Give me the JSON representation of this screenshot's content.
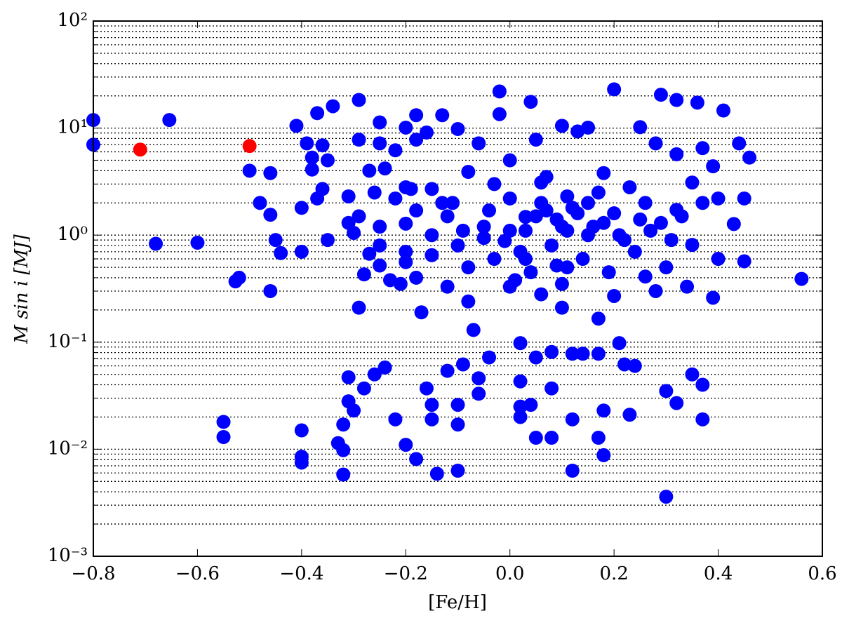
{
  "chart_data": {
    "type": "scatter",
    "xlabel": "[Fe/H]",
    "ylabel": "M sin i [MJ]",
    "xlim": [
      -0.8,
      0.6
    ],
    "ylim": [
      0.001,
      100
    ],
    "yscale": "log",
    "grid": true,
    "xticks": [
      {
        "value": -0.8,
        "label": "−0.8"
      },
      {
        "value": -0.6,
        "label": "−0.6"
      },
      {
        "value": -0.4,
        "label": "−0.4"
      },
      {
        "value": -0.2,
        "label": "−0.2"
      },
      {
        "value": 0,
        "label": "0.0"
      },
      0.2,
      0.4,
      0.6
    ],
    "yticks": [
      {
        "value": 0.001,
        "label": "10⁻³"
      },
      {
        "value": 0.01,
        "label": "10⁻²"
      },
      {
        "value": 0.1,
        "label": "10⁻¹"
      },
      {
        "value": 1,
        "label": "10⁰"
      },
      {
        "value": 10,
        "label": "10¹"
      },
      {
        "value": 100,
        "label": "10²"
      }
    ],
    "yminorticks": [
      0.002,
      0.003,
      0.004,
      0.005,
      0.006,
      0.007,
      0.008,
      0.009,
      0.02,
      0.03,
      0.04,
      0.05,
      0.06,
      0.07,
      0.08,
      0.09,
      0.2,
      0.3,
      0.4,
      0.5,
      0.6,
      0.7,
      0.8,
      0.9,
      2,
      3,
      4,
      5,
      6,
      7,
      8,
      9,
      20,
      30,
      40,
      50,
      60,
      70,
      80,
      90
    ],
    "series": [
      {
        "color": "#0000ff",
        "x": [
          -0.8,
          -0.8,
          -0.654,
          -0.68,
          -0.6,
          -0.55,
          -0.55,
          -0.527,
          -0.52,
          -0.5,
          -0.46,
          -0.46,
          -0.48,
          -0.46,
          -0.45,
          -0.44,
          -0.41,
          -0.4,
          -0.4,
          -0.4,
          -0.4,
          -0.4,
          -0.39,
          -0.38,
          -0.38,
          -0.37,
          -0.37,
          -0.36,
          -0.36,
          -0.35,
          -0.35,
          -0.34,
          -0.33,
          -0.32,
          -0.32,
          -0.32,
          -0.31,
          -0.31,
          -0.31,
          -0.31,
          -0.3,
          -0.3,
          -0.29,
          -0.29,
          -0.29,
          -0.29,
          -0.28,
          -0.28,
          -0.27,
          -0.27,
          -0.26,
          -0.26,
          -0.25,
          -0.25,
          -0.25,
          -0.25,
          -0.24,
          -0.24,
          -0.23,
          -0.22,
          -0.22,
          -0.21,
          -0.2,
          -0.2,
          -0.2,
          -0.2,
          -0.2,
          -0.19,
          -0.18,
          -0.18,
          -0.18,
          -0.18,
          -0.17,
          -0.16,
          -0.16,
          -0.15,
          -0.15,
          -0.15,
          -0.15,
          -0.14,
          -0.13,
          -0.13,
          -0.12,
          -0.12,
          -0.11,
          -0.1,
          -0.1,
          -0.1,
          -0.1,
          -0.09,
          -0.09,
          -0.08,
          -0.08,
          -0.07,
          -0.06,
          -0.06,
          -0.06,
          -0.05,
          -0.04,
          -0.04,
          -0.03,
          -0.02,
          -0.02,
          -0.01,
          0,
          0,
          0,
          0.01,
          0.02,
          0.02,
          0.02,
          0.02,
          0.03,
          0.03,
          0.04,
          0.04,
          0.05,
          0.05,
          0.05,
          0.06,
          0.06,
          0.07,
          0.08,
          0.08,
          0.08,
          0.09,
          0.1,
          0.1,
          0.11,
          0.11,
          0.12,
          0.12,
          0.12,
          0.13,
          0.14,
          0.15,
          0.15,
          0.17,
          0.17,
          0.17,
          0.18,
          0.18,
          0.2,
          0.21,
          0.22,
          0.23,
          0.24,
          0.25,
          0.26,
          0.28,
          0.29,
          0.3,
          0.3,
          0.32,
          0.32,
          0.32,
          0.34,
          0.35,
          0.36,
          0.37,
          0.37,
          0.37,
          0.39,
          0.39,
          0.41,
          0.4,
          0.43,
          0.44,
          0.45,
          0.46,
          0.45,
          0.56,
          0.35,
          0.37,
          0.4,
          0.35,
          0.32,
          0.05,
          0.1,
          0.12,
          0.15,
          0.18,
          0.2,
          0.22,
          0.25,
          0.08,
          0.03,
          0,
          0.02,
          0.14,
          0.17,
          0.23,
          0.27,
          0.06,
          0.11,
          0.19,
          0.24,
          0.09,
          0.13,
          0.16,
          0.21,
          0.26,
          -0.05,
          -0.1,
          -0.15,
          -0.2,
          -0.12,
          -0.08,
          -0.03,
          0.04,
          0.07,
          0.18,
          0.29,
          0.31,
          0.33,
          0.3,
          0.28,
          0.1,
          0.2,
          -0.18,
          -0.25,
          -0.22
        ],
        "values": [
          11.9,
          7.0,
          11.9,
          0.83,
          0.85,
          0.018,
          0.013,
          0.37,
          0.4,
          4.0,
          3.8,
          1.55,
          2.0,
          0.3,
          0.9,
          0.68,
          10.5,
          1.8,
          0.7,
          0.015,
          0.0085,
          0.0075,
          7.2,
          5.3,
          4.1,
          13.8,
          2.2,
          6.9,
          2.7,
          5.0,
          0.9,
          16,
          0.0114,
          0.0058,
          0.017,
          0.0098,
          0.047,
          0.028,
          2.3,
          1.3,
          1.05,
          0.023,
          18.3,
          7.8,
          0.21,
          1.5,
          0.037,
          0.43,
          4.0,
          0.67,
          2.5,
          0.05,
          11.3,
          7.2,
          0.8,
          0.52,
          4.2,
          0.058,
          0.38,
          6.2,
          0.019,
          0.35,
          10.1,
          2.8,
          1.28,
          0.56,
          0.011,
          2.7,
          7.8,
          13.2,
          1.7,
          0.0081,
          0.19,
          0.037,
          9.1,
          2.7,
          0.019,
          0.026,
          0.65,
          0.0059,
          13.2,
          2.0,
          0.33,
          0.054,
          2.0,
          0.026,
          0.017,
          0.0063,
          9.8,
          1.1,
          0.062,
          3.9,
          0.24,
          0.13,
          0.046,
          0.033,
          7.2,
          0.94,
          0.072,
          1.7,
          3.0,
          22,
          13.5,
          0.88,
          5.0,
          1.1,
          0.33,
          0.38,
          0.098,
          0.043,
          0.02,
          0.025,
          1.48,
          0.6,
          17.6,
          0.026,
          7.8,
          0.0128,
          0.072,
          3.1,
          0.28,
          1.7,
          0.081,
          0.037,
          0.0128,
          0.52,
          10.5,
          0.21,
          2.3,
          1.1,
          0.078,
          0.019,
          0.0063,
          9.3,
          0.078,
          10.1,
          2.0,
          0.078,
          0.166,
          0.0128,
          0.023,
          0.0088,
          23,
          0.098,
          0.062,
          0.021,
          0.06,
          10.2,
          0.41,
          7.2,
          20.5,
          0.035,
          0.0036,
          18.3,
          0.027,
          5.7,
          0.33,
          0.05,
          17.3,
          0.04,
          0.019,
          6.5,
          4.4,
          0.26,
          14.6,
          0.6,
          1.27,
          7.2,
          2.2,
          5.3,
          0.57,
          0.39,
          3.1,
          2.0,
          2.2,
          0.81,
          1.72,
          1.5,
          1.2,
          1.8,
          1.0,
          1.3,
          1.6,
          0.9,
          1.4,
          0.8,
          1.1,
          2.2,
          0.7,
          0.6,
          2.5,
          2.8,
          1.1,
          2.0,
          0.5,
          0.45,
          0.7,
          1.4,
          1.6,
          1.2,
          1.0,
          2.0,
          1.2,
          0.8,
          1.0,
          0.7,
          1.5,
          0.5,
          0.6,
          0.45,
          3.5,
          3.8,
          1.3,
          0.9,
          1.5,
          0.5,
          0.3,
          0.35,
          0.27,
          0.4,
          1.2,
          2.2
        ]
      },
      {
        "color": "#ff0000",
        "x": [
          -0.71,
          -0.5
        ],
        "values": [
          6.3,
          6.8
        ]
      }
    ]
  }
}
